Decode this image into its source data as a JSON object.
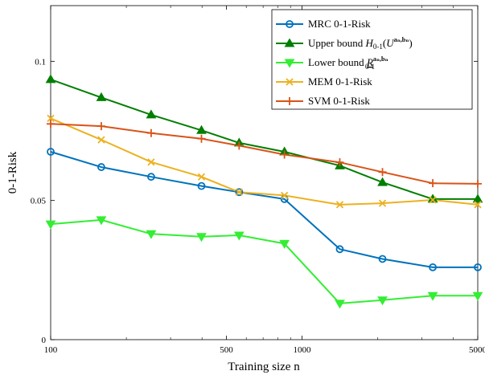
{
  "chart_data": {
    "type": "line",
    "xscale": "log",
    "xlabel": "Training size n",
    "ylabel": "0-1-Risk",
    "xlim": [
      100,
      5000
    ],
    "ylim": [
      0,
      0.12
    ],
    "xticks": [
      {
        "value": 100,
        "label": "100"
      },
      {
        "value": 500,
        "label": "500"
      },
      {
        "value": 1000,
        "label": "1000"
      },
      {
        "value": 5000,
        "label": "5000"
      }
    ],
    "yticks": [
      {
        "value": 0,
        "label": "0"
      },
      {
        "value": 0.05,
        "label": "0.05"
      },
      {
        "value": 0.1,
        "label": "0.1"
      }
    ],
    "grid": false,
    "legend_position": "top-right",
    "x": [
      100,
      159,
      251,
      398,
      562,
      851,
      1413,
      2089,
      3311,
      5000
    ],
    "series": [
      {
        "name": "MRC 0-1-Risk",
        "color": "#0072BD",
        "marker": "circle",
        "values": [
          0.0675,
          0.062,
          0.0585,
          0.0552,
          0.053,
          0.0505,
          0.0325,
          0.029,
          0.026,
          0.026
        ]
      },
      {
        "name": "Upper bound H_{0-1}(U^{a_n,b_n})",
        "color": "#007F00",
        "marker": "triangle-up",
        "values": [
          0.0935,
          0.087,
          0.0808,
          0.0752,
          0.0707,
          0.0675,
          0.0625,
          0.0565,
          0.0505,
          0.0505
        ]
      },
      {
        "name": "Lower bound R_{0-1}^{a_n,b_n}",
        "color": "#33EE33",
        "marker": "triangle-down",
        "values": [
          0.0415,
          0.043,
          0.038,
          0.037,
          0.0375,
          0.0345,
          0.013,
          0.0142,
          0.0158,
          0.0158
        ]
      },
      {
        "name": "MEM 0-1-Risk",
        "color": "#EDB120",
        "marker": "x",
        "values": [
          0.0795,
          0.0718,
          0.0638,
          0.0585,
          0.053,
          0.0518,
          0.0485,
          0.049,
          0.0502,
          0.0485
        ]
      },
      {
        "name": "SVM 0-1-Risk",
        "color": "#D95319",
        "marker": "plus",
        "values": [
          0.0775,
          0.0767,
          0.0742,
          0.0722,
          0.0697,
          0.0665,
          0.0637,
          0.0602,
          0.0562,
          0.056
        ]
      }
    ]
  },
  "legend": {
    "mrc": {
      "label": "MRC 0-1-Risk"
    },
    "upper": {
      "prefix": "Upper bound ",
      "H": "H",
      "sub": "0-1",
      "open": "(",
      "U": "U",
      "sup": "aₙ,bₙ",
      "close": ")"
    },
    "lower": {
      "prefix": "Lower bound ",
      "R": "R",
      "sub": "0-1",
      "sup": "aₙ,bₙ"
    },
    "mem": {
      "label": "MEM 0-1-Risk"
    },
    "svm": {
      "label": "SVM 0-1-Risk"
    }
  }
}
